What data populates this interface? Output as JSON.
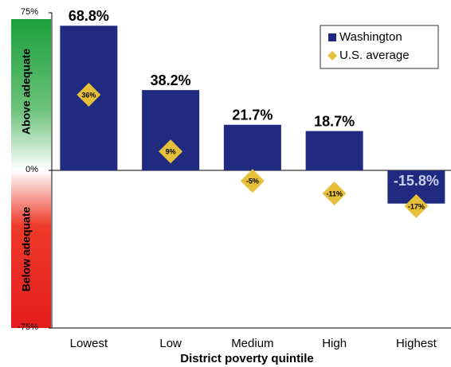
{
  "chart_data": {
    "type": "bar",
    "x_label": "District poverty quintile",
    "annotations": [
      "Above adequate",
      "Below adequate"
    ],
    "categories": [
      "Lowest",
      "Low",
      "Medium",
      "High",
      "Highest"
    ],
    "series": [
      {
        "name": "Washington",
        "color": "#1f2a80",
        "values": [
          68.8,
          38.2,
          21.7,
          18.7,
          -15.8
        ],
        "value_labels": [
          "68.8%",
          "38.2%",
          "21.7%",
          "18.7%",
          "-15.8%"
        ]
      },
      {
        "name": "U.S. average",
        "color": "#e6c03a",
        "values": [
          36,
          9,
          -5,
          -11,
          -17
        ],
        "value_labels": [
          "36%",
          "9%",
          "-5%",
          "-11%",
          "-17%"
        ]
      }
    ],
    "ylim": [
      -75,
      75
    ],
    "yticks": [
      {
        "value": -75,
        "label": "-75%"
      },
      {
        "value": 0,
        "label": "0%"
      },
      {
        "value": 75,
        "label": "75%"
      }
    ],
    "legend": "top-right"
  }
}
